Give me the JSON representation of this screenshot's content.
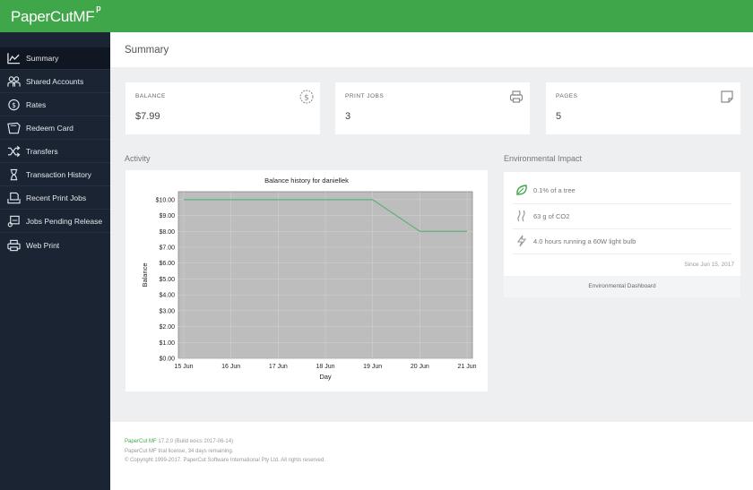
{
  "app": {
    "logo": "PaperCut",
    "logo_suffix": "MF",
    "logo_mark": "p"
  },
  "sidebar": {
    "items": [
      {
        "label": "Summary",
        "icon": "chart-line-icon",
        "active": true
      },
      {
        "label": "Shared Accounts",
        "icon": "users-icon"
      },
      {
        "label": "Rates",
        "icon": "dollar-circle-icon"
      },
      {
        "label": "Redeem Card",
        "icon": "card-icon"
      },
      {
        "label": "Transfers",
        "icon": "shuffle-icon"
      },
      {
        "label": "Transaction History",
        "icon": "hourglass-icon"
      },
      {
        "label": "Recent Print Jobs",
        "icon": "printer-tray-icon"
      },
      {
        "label": "Jobs Pending Release",
        "icon": "printer-pending-icon"
      },
      {
        "label": "Web Print",
        "icon": "printer-icon"
      }
    ]
  },
  "header": {
    "title": "Summary"
  },
  "cards": {
    "balance": {
      "label": "BALANCE",
      "value": "$7.99",
      "icon": "dollar-circle-icon"
    },
    "print_jobs": {
      "label": "PRINT JOBS",
      "value": "3",
      "icon": "printer-icon"
    },
    "pages": {
      "label": "PAGES",
      "value": "5",
      "icon": "page-icon"
    }
  },
  "activity": {
    "heading": "Activity"
  },
  "chart_data": {
    "type": "line",
    "title": "Balance history for daniellek",
    "xlabel": "Day",
    "ylabel": "Balance",
    "categories": [
      "15 Jun",
      "16 Jun",
      "17 Jun",
      "18 Jun",
      "19 Jun",
      "20 Jun",
      "21 Jun"
    ],
    "yticks": [
      "$0.00",
      "$1.00",
      "$2.00",
      "$3.00",
      "$4.00",
      "$5.00",
      "$6.00",
      "$7.00",
      "$8.00",
      "$9.00",
      "$10.00"
    ],
    "ylim": [
      0,
      10.5
    ],
    "grid": true,
    "series": [
      {
        "values": [
          10,
          10,
          10,
          10,
          10,
          8,
          8
        ],
        "color": "#5fb179"
      }
    ],
    "plot_background": "#bdbdbd"
  },
  "environment": {
    "heading": "Environmental Impact",
    "rows": [
      {
        "text": "0.1% of a tree",
        "icon": "leaf-icon"
      },
      {
        "text": "63 g of CO2",
        "icon": "smoke-icon"
      },
      {
        "text": "4.0 hours running a 60W light bulb",
        "icon": "lightning-icon"
      }
    ],
    "since": "Since Jun 15, 2017",
    "dashboard_link": "Environmental Dashboard"
  },
  "footer": {
    "brand": "PaperCut MF",
    "version": " 17.2.0 (Build eoics 2017-06-14)",
    "license": "PaperCut MF trial license, 34 days remaining.",
    "copyright": "© Copyright 1999-2017. PaperCut Software International Pty Ltd. All rights reserved."
  },
  "colors": {
    "accent": "#3fa64a",
    "sidebar": "#1b2433",
    "line": "#5fb179"
  }
}
